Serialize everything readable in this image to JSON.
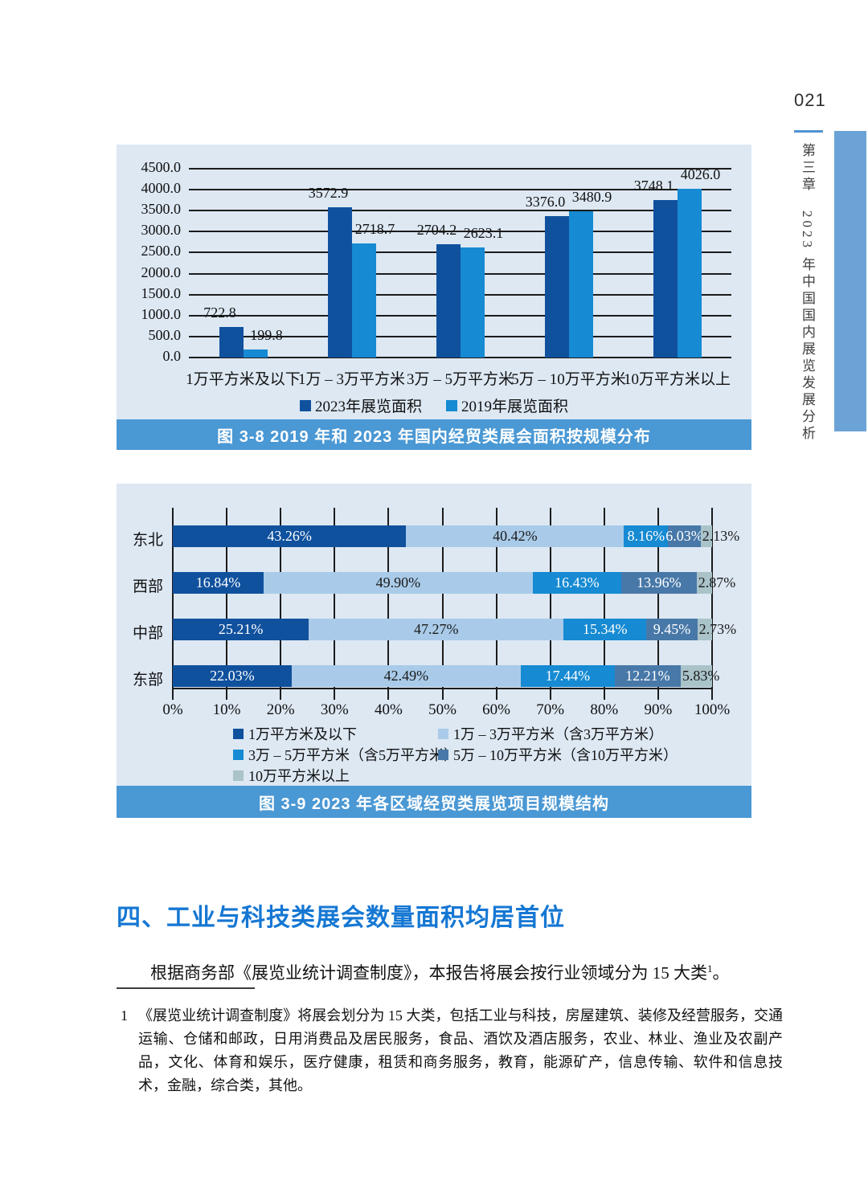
{
  "page": {
    "number": "021",
    "sidebar_vertical_text": "第三章　2023 年中国国内展览发展分析"
  },
  "colors": {
    "panel_bg": "#dde8f3",
    "caption_bg": "#4a98d4",
    "heading_blue": "#1577d3",
    "sidebar_bar": "#6ba3d6",
    "gridline": "#1c1c1c"
  },
  "chart_data": [
    {
      "type": "bar",
      "title": "图 3-8   2019 年和 2023 年国内经贸类展会面积按规模分布",
      "categories": [
        "1万平方米及以下",
        "1万 – 3万平方米",
        "3万 – 5万平方米",
        "5万 – 10万平方米",
        "10万平方米以上"
      ],
      "series": [
        {
          "name": "2023年展览面积",
          "color": "#10519e",
          "values": [
            722.8,
            3572.9,
            2704.2,
            3376.0,
            3748.1
          ]
        },
        {
          "name": "2019年展览面积",
          "color": "#168ad2",
          "values": [
            199.8,
            2718.7,
            2623.1,
            3480.9,
            4026.0
          ]
        }
      ],
      "ylim": [
        0,
        4500
      ],
      "ytick_step": 500,
      "grid": true,
      "legend_position": "bottom"
    },
    {
      "type": "stacked-bar-horizontal",
      "title": "图 3-9   2023 年各区域经贸类展览项目规模结构",
      "categories": [
        "东北",
        "西部",
        "中部",
        "东部"
      ],
      "series": [
        {
          "name": "1万平方米及以下",
          "color": "#10519e",
          "label_color": "#ffffff",
          "values": [
            43.26,
            16.84,
            25.21,
            22.03
          ]
        },
        {
          "name": "1万 – 3万平方米（含3万平方米）",
          "color": "#a9cbe9",
          "label_color": "#1a1a1a",
          "values": [
            40.42,
            49.9,
            47.27,
            42.49
          ]
        },
        {
          "name": "3万 – 5万平方米（含5万平方米）",
          "color": "#168ad2",
          "label_color": "#ffffff",
          "values": [
            8.16,
            16.43,
            15.34,
            17.44
          ]
        },
        {
          "name": "5万 – 10万平方米（含10万平方米）",
          "color": "#4878a8",
          "label_color": "#ffffff",
          "values": [
            6.03,
            13.96,
            9.45,
            12.21
          ]
        },
        {
          "name": "10万平方米以上",
          "color": "#a9c3c9",
          "label_color": "#1a1a1a",
          "values": [
            2.13,
            2.87,
            2.73,
            5.83
          ]
        }
      ],
      "xlim": [
        0,
        100
      ],
      "xtick_step": 10,
      "xtick_suffix": "%",
      "grid": true,
      "legend_position": "bottom"
    }
  ],
  "section": {
    "heading": "四、工业与科技类展会数量面积均居首位",
    "paragraph_text": "根据商务部《展览业统计调查制度》，本报告将展会按行业领域分为 15 大类",
    "footnote_ref": "1",
    "paragraph_end": "。"
  },
  "footnote": {
    "marker": "1",
    "text": "《展览业统计调查制度》将展会划分为 15 大类，包括工业与科技，房屋建筑、装修及经营服务，交通运输、仓储和邮政，日用消费品及居民服务，食品、酒饮及酒店服务，农业、林业、渔业及农副产品，文化、体育和娱乐，医疗健康，租赁和商务服务，教育，能源矿产，信息传输、软件和信息技术，金融，综合类，其他。"
  }
}
